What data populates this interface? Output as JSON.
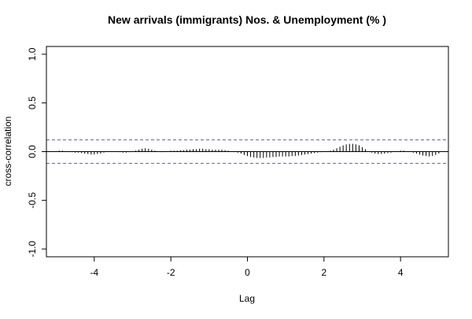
{
  "chart_data": {
    "type": "bar",
    "title": "New arrivals (immigrants) Nos. & Unemployment (% )",
    "xlabel": "Lag",
    "ylabel": "cross-correlation",
    "xlim": [
      -5.25,
      5.25
    ],
    "ylim": [
      -1.08,
      1.08
    ],
    "x_ticks": [
      -4,
      -2,
      0,
      2,
      4
    ],
    "x_tick_labels": [
      "-4",
      "-2",
      "0",
      "2",
      "4"
    ],
    "y_ticks": [
      -1.0,
      -0.5,
      0.0,
      0.5,
      1.0
    ],
    "y_tick_labels": [
      "-1.0",
      "-0.5",
      "0.0",
      "0.5",
      "1.0"
    ],
    "confidence_band": 0.12,
    "grid": false,
    "colors": {
      "bars": "#000000",
      "zero_line": "#000000",
      "band": "#5b5bd6"
    },
    "series": [
      {
        "x": [
          -5.0,
          -4.917,
          -4.833,
          -4.75,
          -4.667,
          -4.583,
          -4.5,
          -4.417,
          -4.333,
          -4.25,
          -4.167,
          -4.083,
          -4.0,
          -3.917,
          -3.833,
          -3.75,
          -3.667,
          -3.583,
          -3.5,
          -3.417,
          -3.333,
          -3.25,
          -3.167,
          -3.083,
          -3.0,
          -2.917,
          -2.833,
          -2.75,
          -2.667,
          -2.583,
          -2.5,
          -2.417,
          -2.333,
          -2.25,
          -2.167,
          -2.083,
          -2.0,
          -1.917,
          -1.833,
          -1.75,
          -1.667,
          -1.583,
          -1.5,
          -1.417,
          -1.333,
          -1.25,
          -1.167,
          -1.083,
          -1.0,
          -0.917,
          -0.833,
          -0.75,
          -0.667,
          -0.583,
          -0.5,
          -0.417,
          -0.333,
          -0.25,
          -0.167,
          -0.083,
          0.0,
          0.083,
          0.167,
          0.25,
          0.333,
          0.417,
          0.5,
          0.583,
          0.667,
          0.75,
          0.833,
          0.917,
          1.0,
          1.083,
          1.167,
          1.25,
          1.333,
          1.417,
          1.5,
          1.583,
          1.667,
          1.75,
          1.833,
          1.917,
          2.0,
          2.083,
          2.167,
          2.25,
          2.333,
          2.417,
          2.5,
          2.583,
          2.667,
          2.75,
          2.833,
          2.917,
          3.0,
          3.083,
          3.167,
          3.25,
          3.333,
          3.417,
          3.5,
          3.583,
          3.667,
          3.75,
          3.833,
          3.917,
          4.0,
          4.083,
          4.167,
          4.25,
          4.333,
          4.417,
          4.5,
          4.583,
          4.667,
          4.75,
          4.833,
          4.917,
          5.0
        ],
        "values": [
          0.005,
          0.01,
          0.01,
          0.005,
          0.0,
          -0.005,
          -0.01,
          -0.01,
          -0.015,
          -0.02,
          -0.025,
          -0.03,
          -0.03,
          -0.025,
          -0.02,
          -0.01,
          0.0,
          0.005,
          0.005,
          0.0,
          -0.005,
          -0.01,
          -0.01,
          -0.005,
          0.0,
          0.01,
          0.02,
          0.03,
          0.035,
          0.03,
          0.02,
          0.01,
          0.0,
          -0.005,
          0.0,
          0.005,
          0.01,
          0.01,
          0.01,
          0.015,
          0.015,
          0.02,
          0.02,
          0.025,
          0.025,
          0.03,
          0.03,
          0.025,
          0.025,
          0.02,
          0.02,
          0.02,
          0.02,
          0.015,
          0.01,
          0.005,
          0.0,
          -0.01,
          -0.02,
          -0.035,
          -0.045,
          -0.055,
          -0.06,
          -0.065,
          -0.065,
          -0.065,
          -0.06,
          -0.06,
          -0.055,
          -0.055,
          -0.05,
          -0.05,
          -0.05,
          -0.05,
          -0.045,
          -0.045,
          -0.04,
          -0.035,
          -0.03,
          -0.025,
          -0.02,
          -0.015,
          -0.01,
          -0.005,
          0.0,
          0.005,
          0.01,
          0.02,
          0.035,
          0.05,
          0.065,
          0.075,
          0.08,
          0.08,
          0.075,
          0.065,
          0.045,
          0.025,
          0.005,
          -0.01,
          -0.02,
          -0.025,
          -0.025,
          -0.02,
          -0.015,
          -0.01,
          0.0,
          0.005,
          0.01,
          0.01,
          0.005,
          0.0,
          -0.01,
          -0.02,
          -0.03,
          -0.04,
          -0.045,
          -0.05,
          -0.045,
          -0.035,
          -0.02
        ]
      }
    ]
  }
}
